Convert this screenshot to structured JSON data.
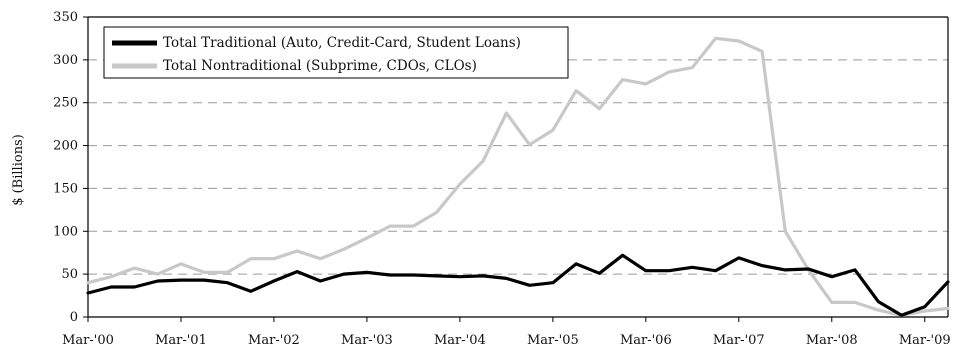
{
  "chart_data": {
    "type": "line",
    "title": "",
    "xlabel": "",
    "ylabel": "$ (Billions)",
    "ylim": [
      0,
      350
    ],
    "yticks": [
      0,
      50,
      100,
      150,
      200,
      250,
      300,
      350
    ],
    "xlim": [
      0,
      37
    ],
    "x_tick_labels": [
      {
        "x": 0,
        "label": "Mar-'00"
      },
      {
        "x": 4,
        "label": "Mar-'01"
      },
      {
        "x": 8,
        "label": "Mar-'02"
      },
      {
        "x": 12,
        "label": "Mar-'03"
      },
      {
        "x": 16,
        "label": "Mar-'04"
      },
      {
        "x": 20,
        "label": "Mar-'05"
      },
      {
        "x": 24,
        "label": "Mar-'06"
      },
      {
        "x": 28,
        "label": "Mar-'07"
      },
      {
        "x": 32,
        "label": "Mar-'08"
      },
      {
        "x": 36,
        "label": "Mar-'09"
      }
    ],
    "grid": {
      "horizontal": true,
      "style": "dashed"
    },
    "legend_position": "top-left",
    "series": [
      {
        "name": "Total Traditional (Auto, Credit-Card, Student Loans)",
        "color": "#000000",
        "values": [
          28,
          35,
          35,
          42,
          43,
          43,
          40,
          30,
          42,
          53,
          42,
          50,
          52,
          49,
          49,
          48,
          47,
          48,
          45,
          37,
          40,
          62,
          51,
          72,
          54,
          54,
          58,
          54,
          69,
          60,
          55,
          56,
          47,
          55,
          18,
          2,
          12,
          41
        ]
      },
      {
        "name": "Total Nontraditional (Subprime, CDOs, CLOs)",
        "color": "#c8c8c8",
        "values": [
          40,
          47,
          57,
          50,
          62,
          52,
          52,
          68,
          68,
          77,
          68,
          79,
          92,
          106,
          106,
          122,
          155,
          182,
          238,
          201,
          218,
          264,
          243,
          277,
          272,
          286,
          291,
          325,
          322,
          310,
          100,
          55,
          17,
          17,
          8,
          2,
          7,
          10
        ]
      }
    ]
  }
}
